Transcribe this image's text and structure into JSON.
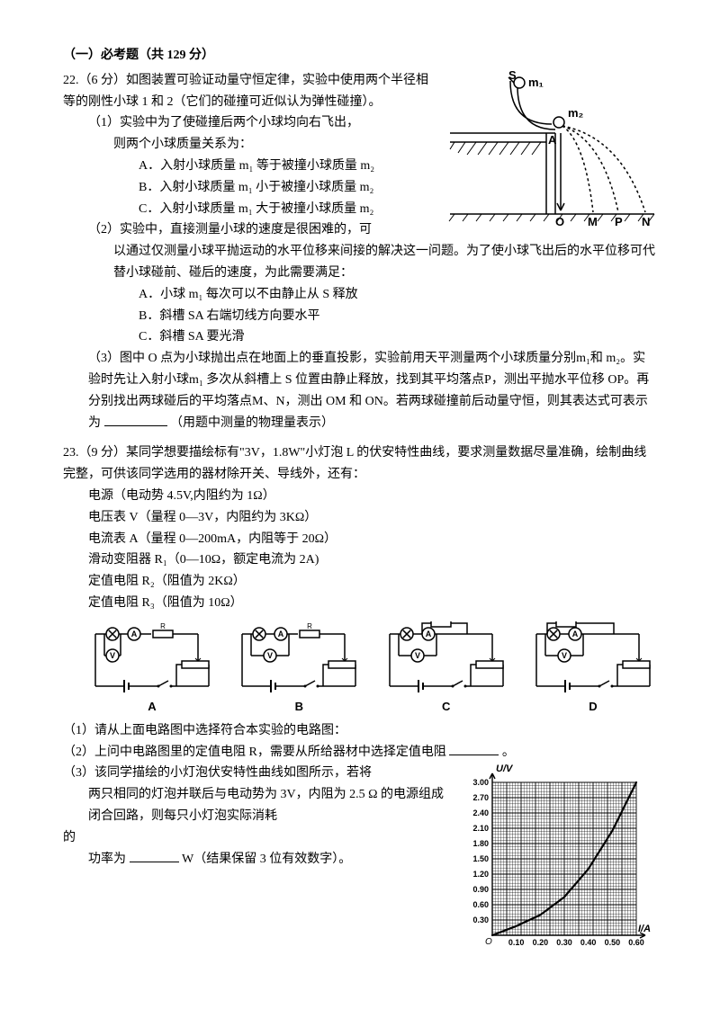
{
  "section": {
    "title": "（一）必考题（共 129 分）"
  },
  "q22": {
    "header": "22.（6 分）如图装置可验证动量守恒定律，实验中使用两个半径相等的刚性小球 1 和 2（它们的碰撞可近似认为弹性碰撞）。",
    "p1_lead": "（1）实验中为了使碰撞后两个小球均向右飞出，",
    "p1_line2": "则两个小球质量关系为：",
    "p1_A": "A．入射小球质量 m₁ 等于被撞小球质量 m₂",
    "p1_B": "B．入射小球质量 m₁ 小于被撞小球质量 m₂",
    "p1_C": "C．入射小球质量 m₁ 大于被撞小球质量 m₂",
    "p2_lead": "（2）实验中，直接测量小球的速度是很困难的，可",
    "p2_l2": "以通过仅测量小球平抛运动的水平位移来间接的解决这一问题。为了使小球飞出后的水平位移可代替小球碰前、碰后的速度，为此需要满足：",
    "p2_A": "A．小球 m₁ 每次可以不由静止从 S 释放",
    "p2_B": "B．斜槽 SA 右端切线方向要水平",
    "p2_C": "C．斜槽 SA 要光滑",
    "p3": "（3）图中 O 点为小球抛出点在地面上的垂直投影，实验前用天平测量两个小球质量分别m₁和 m₂。实验时先让入射小球m₁ 多次从斜槽上 S 位置由静止释放，找到其平均落点P，测出平抛水平位移 OP。再分别找出两球碰后的平均落点M、N，测出 OM 和 ON。若两球碰撞前后动量守恒，则其表达式可表示为",
    "p3_tail": "（用题中测量的物理量表示）",
    "fig": {
      "S": "S",
      "m1": "m₁",
      "m2": "m₂",
      "A": "A",
      "O": "O",
      "M": "M",
      "P": "P",
      "N": "N",
      "stroke": "#000"
    }
  },
  "q23": {
    "header": "23.（9 分）某同学想要描绘标有\"3V，1.8W\"小灯泡 L 的伏安特性曲线，要求测量数据尽量准确，绘制曲线完整，可供该同学选用的器材除开关、导线外，还有：",
    "items": [
      "电源（电动势 4.5V,内阻约为 1Ω）",
      "电压表 V（量程 0—3V，内阻约为 3KΩ）",
      "电流表 A（量程 0—200mA，内阻等于 20Ω）",
      "滑动变阻器 R₁（0—10Ω，额定电流为 2A)",
      "定值电阻 R₂（阻值为 2KΩ）",
      "定值电阻 R₃（阻值为 10Ω）"
    ],
    "circuits": {
      "labels": [
        "A",
        "B",
        "C",
        "D"
      ],
      "lamp": "⊗",
      "ammeter": "A",
      "voltmeter": "V",
      "resistor": "R",
      "stroke": "#000"
    },
    "sub1": "（1）请从上面电路图中选择符合本实验的电路图：",
    "sub2_a": "（2）上问中电路图里的定值电阻 R，需要从所给器材中选择定值电阻",
    "sub2_b": "。",
    "sub3_a": "（3）该同学描绘的小灯泡伏安特性曲线如图所示，若将",
    "sub3_l2": "两只相同的灯泡并联后与电动势为 3V，内阻为 2.5 Ω 的电源组成闭合回路，则每只小灯泡实际消耗",
    "sub3_l3a": "的",
    "sub3_l3b": "功率为",
    "sub3_l3c": " W（结果保留 3 位有效数字）。",
    "graph": {
      "ylabel": "U/V",
      "xlabel": "I/A",
      "yticks": [
        "0.30",
        "0.60",
        "0.90",
        "1.20",
        "1.50",
        "1.80",
        "2.10",
        "2.40",
        "2.70",
        "3.00"
      ],
      "xticks": [
        "0.10",
        "0.20",
        "0.30",
        "0.40",
        "0.50",
        "0.60"
      ],
      "origin": "O",
      "ymax": 3.0,
      "xmax": 0.6,
      "curve": [
        [
          0,
          0
        ],
        [
          0.1,
          0.18
        ],
        [
          0.2,
          0.4
        ],
        [
          0.3,
          0.75
        ],
        [
          0.4,
          1.3
        ],
        [
          0.5,
          2.05
        ],
        [
          0.6,
          3.0
        ]
      ],
      "bg": "#ffffff",
      "grid": "#000",
      "stroke": "#000"
    }
  }
}
